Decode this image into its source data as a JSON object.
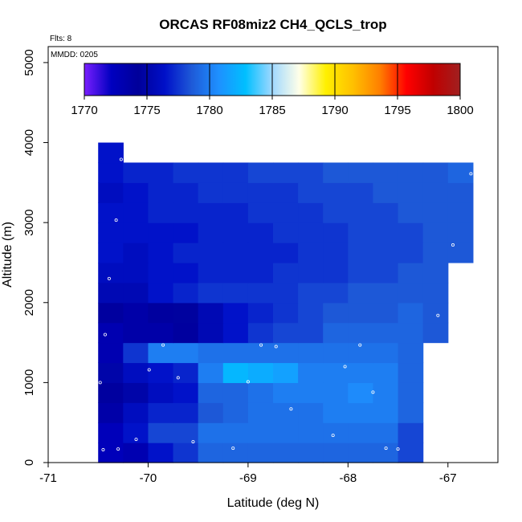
{
  "chart_data": {
    "type": "heatmap",
    "title": "ORCAS RF08miz2 CH4_QCLS_trop",
    "xlabel": "Latitude (deg N)",
    "ylabel": "Altitude (m)",
    "flights_label": "Flts: 8",
    "date_label": "MMDD: 0205",
    "xlim": [
      -71,
      -66.5
    ],
    "ylim": [
      0,
      5200
    ],
    "xticks": [
      -71,
      -70,
      -69,
      -68,
      -67
    ],
    "xtick_labels": [
      "-71",
      "-70",
      "-69",
      "-68",
      "-67"
    ],
    "yticks": [
      0,
      1000,
      2000,
      3000,
      4000,
      5000
    ],
    "ytick_labels": [
      "0",
      "1000",
      "2000",
      "3000",
      "4000",
      "5000"
    ],
    "colorbar": {
      "min": 1770,
      "max": 1800,
      "ticks": [
        1770,
        1775,
        1780,
        1785,
        1790,
        1795,
        1800
      ],
      "tick_labels": [
        "1770",
        "1775",
        "1780",
        "1785",
        "1790",
        "1795",
        "1800"
      ],
      "colors": [
        "#7a1fff",
        "#0000c0",
        "#00009a",
        "#0010c8",
        "#1e5ad8",
        "#1e90ff",
        "#00bfff",
        "#a0d8ff",
        "#ffffe8",
        "#fff000",
        "#ffc000",
        "#ff8000",
        "#ff0000",
        "#c00000",
        "#a02020"
      ]
    },
    "cell_width_deg": 0.25,
    "cell_height_m": 250,
    "x_centers": [
      -70.375,
      -70.125,
      -69.875,
      -69.625,
      -69.375,
      -69.125,
      -68.875,
      -68.625,
      -68.375,
      -68.125,
      -67.875,
      -67.625,
      -67.375,
      -67.125,
      -66.875
    ],
    "y_centers": [
      125,
      375,
      625,
      875,
      1125,
      1375,
      1625,
      1875,
      2125,
      2375,
      2625,
      2875,
      3125,
      3375,
      3625,
      3875
    ],
    "values": [
      [
        1772.5,
        1773.0,
        1776.5,
        1777.5,
        1779.0,
        1779.0,
        1779.0,
        1779.0,
        1779.0,
        1779.0,
        1779.0,
        1779.0,
        1778.0,
        null,
        null
      ],
      [
        1772.5,
        1776.5,
        1778.0,
        1778.0,
        1779.5,
        1779.5,
        1779.5,
        1779.5,
        1779.5,
        1779.5,
        1779.5,
        1779.5,
        1778.0,
        null,
        null
      ],
      [
        1773.5,
        1776.0,
        1777.0,
        1777.0,
        1778.5,
        1779.0,
        1779.5,
        1779.5,
        1779.5,
        1780.0,
        1780.0,
        1780.0,
        1779.0,
        null,
        null
      ],
      [
        1774.0,
        1775.0,
        1776.0,
        1776.5,
        1779.0,
        1779.0,
        1779.5,
        1780.0,
        1780.0,
        1780.0,
        1780.5,
        1780.0,
        1779.0,
        null,
        null
      ],
      [
        1775.0,
        1776.0,
        1776.5,
        1777.0,
        1780.0,
        1782.5,
        1782.0,
        1781.5,
        1780.0,
        1780.0,
        1780.0,
        1780.0,
        1779.0,
        null,
        null
      ],
      [
        1773.0,
        1777.5,
        1780.0,
        1780.0,
        1779.5,
        1779.5,
        1779.5,
        1779.5,
        1779.5,
        1779.5,
        1779.5,
        1779.5,
        1779.0,
        null,
        null
      ],
      [
        1773.0,
        1773.5,
        1773.5,
        1774.0,
        1775.5,
        1776.5,
        1777.5,
        1778.0,
        1778.0,
        1779.0,
        1779.0,
        1779.0,
        1779.0,
        1778.5,
        null
      ],
      [
        1774.0,
        1773.5,
        1774.0,
        1774.5,
        1775.5,
        1776.5,
        1777.0,
        1777.5,
        1778.0,
        1778.5,
        1778.5,
        1778.5,
        1779.0,
        1778.5,
        null
      ],
      [
        1775.5,
        1775.5,
        1776.5,
        1777.0,
        1777.5,
        1777.5,
        1777.5,
        1777.5,
        1778.0,
        1778.0,
        1778.5,
        1778.5,
        1778.5,
        1778.5,
        null
      ],
      [
        1776.0,
        1776.0,
        1776.5,
        1776.5,
        1777.0,
        1777.0,
        1777.0,
        1777.5,
        1777.5,
        1777.5,
        1778.0,
        1778.0,
        1778.5,
        1778.5,
        null
      ],
      [
        1776.5,
        1776.0,
        1776.5,
        1777.0,
        1777.0,
        1777.0,
        1777.0,
        1777.0,
        1777.5,
        1777.5,
        1778.0,
        1778.0,
        1778.0,
        1778.5,
        1778.5
      ],
      [
        1776.5,
        1776.5,
        1776.5,
        1776.5,
        1777.0,
        1777.0,
        1777.0,
        1777.5,
        1777.5,
        1777.5,
        1778.0,
        1778.0,
        1778.0,
        1778.5,
        1778.5
      ],
      [
        1776.5,
        1776.5,
        1777.0,
        1777.0,
        1777.0,
        1777.0,
        1777.5,
        1777.5,
        1777.5,
        1778.0,
        1778.0,
        1778.0,
        1778.5,
        1778.5,
        1778.5
      ],
      [
        1776.0,
        1776.5,
        1777.0,
        1777.0,
        1777.5,
        1777.5,
        1777.5,
        1777.5,
        1778.0,
        1778.0,
        1778.0,
        1778.5,
        1778.5,
        1778.5,
        1778.5
      ],
      [
        1776.5,
        1777.0,
        1777.0,
        1777.5,
        1777.5,
        1777.5,
        1778.0,
        1778.0,
        1778.0,
        1778.5,
        1778.5,
        1778.5,
        1778.5,
        1778.5,
        1779.0
      ],
      [
        1776.5,
        null,
        null,
        null,
        null,
        null,
        null,
        null,
        null,
        null,
        null,
        null,
        null,
        null,
        null
      ]
    ],
    "points": [
      {
        "x": -70.45,
        "y": 160
      },
      {
        "x": -70.3,
        "y": 170
      },
      {
        "x": -70.12,
        "y": 290
      },
      {
        "x": -69.55,
        "y": 260
      },
      {
        "x": -69.15,
        "y": 180
      },
      {
        "x": -68.15,
        "y": 340
      },
      {
        "x": -67.62,
        "y": 180
      },
      {
        "x": -67.5,
        "y": 170
      },
      {
        "x": -68.57,
        "y": 670
      },
      {
        "x": -67.75,
        "y": 880
      },
      {
        "x": -70.48,
        "y": 1000
      },
      {
        "x": -69.99,
        "y": 1160
      },
      {
        "x": -69.7,
        "y": 1060
      },
      {
        "x": -69.0,
        "y": 1010
      },
      {
        "x": -68.03,
        "y": 1200
      },
      {
        "x": -69.85,
        "y": 1470
      },
      {
        "x": -68.87,
        "y": 1470
      },
      {
        "x": -68.72,
        "y": 1450
      },
      {
        "x": -67.88,
        "y": 1470
      },
      {
        "x": -70.43,
        "y": 1600
      },
      {
        "x": -67.1,
        "y": 1840
      },
      {
        "x": -70.39,
        "y": 2300
      },
      {
        "x": -70.32,
        "y": 3030
      },
      {
        "x": -66.95,
        "y": 2720
      },
      {
        "x": -66.77,
        "y": 3610
      },
      {
        "x": -70.27,
        "y": 3790
      }
    ]
  }
}
